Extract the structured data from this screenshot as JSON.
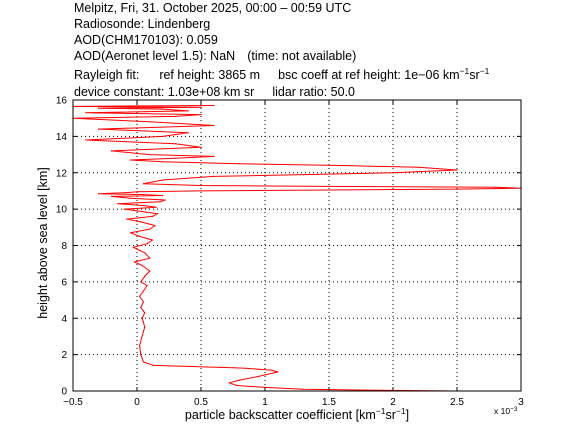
{
  "header": {
    "line1": "Melpitz, Fri, 31. October 2025, 00:00 – 00:59 UTC",
    "line2": "Radiosonde: Lindenberg",
    "line3": "AOD(CHM170103): 0.059",
    "line4_a": "AOD(Aeronet level 1.5): NaN",
    "line4_b": "(time: not available)",
    "line5_a": "Rayleigh fit:",
    "line5_b": "ref height: 3865 m",
    "line5_c": "bsc coeff at ref height: 1e−06 km",
    "line5_sup1": "−1",
    "line5_d": "sr",
    "line5_sup2": "−1",
    "line6_a": "device constant: 1.03e+08 km sr",
    "line6_b": "lidar ratio: 50.0"
  },
  "colors": {
    "profile": "#ff0000",
    "axes": "#000000",
    "grid": "#000000"
  },
  "chart_data": {
    "type": "line",
    "xlabel": "particle backscatter coefficient [km",
    "xlabel_sup1": "−1",
    "xlabel_mid": "sr",
    "xlabel_sup2": "−1",
    "xlabel_end": "]",
    "ylabel": "height above sea level [km]",
    "x_exponent_base": "x 10",
    "x_exponent_power": "−3",
    "xlim": [
      -0.5,
      3
    ],
    "ylim": [
      0,
      16
    ],
    "xticks": [
      -0.5,
      0,
      0.5,
      1,
      1.5,
      2,
      2.5,
      3
    ],
    "xtick_labels": [
      "−0.5",
      "0",
      "0.5",
      "1",
      "1.5",
      "2",
      "2.5",
      "3"
    ],
    "yticks": [
      0,
      2,
      4,
      6,
      8,
      10,
      12,
      14,
      16
    ],
    "ytick_labels": [
      "0",
      "2",
      "4",
      "6",
      "8",
      "10",
      "12",
      "14",
      "16"
    ],
    "grid": "dotted",
    "series": [
      {
        "x": [
          2.5,
          2.2,
          1.8,
          1.3,
          1.0,
          0.78,
          0.72,
          0.8,
          0.95,
          1.1,
          1.05,
          0.95,
          0.85,
          0.75,
          0.65,
          0.55,
          0.4,
          0.25,
          0.12,
          0.05,
          0.03,
          0.02,
          0.04,
          0.06,
          0.05,
          0.04,
          0.06,
          0.03,
          0.05,
          0.02,
          0.05,
          0.08,
          0.03,
          0.06,
          0.1,
          0.04,
          -0.02,
          0.1,
          0.06,
          -0.03,
          0.08,
          0.12,
          0.02,
          -0.05,
          0.1,
          0.14,
          0.03,
          -0.08,
          0.12,
          0.16,
          0.0,
          -0.1,
          0.15,
          0.05,
          -0.15,
          0.18,
          0.22,
          -0.05,
          -0.2,
          0.2,
          0.05,
          -0.3,
          -0.1,
          0.0,
          0.5,
          1.5,
          2.5,
          3.0,
          2.8,
          1.5,
          0.5,
          0.05,
          0.2,
          0.6,
          1.3,
          2.0,
          2.5,
          2.2,
          1.6,
          0.8,
          0.2,
          -0.05,
          0.3,
          0.6,
          0.1,
          -0.2,
          0.5,
          0.3,
          -0.4,
          0.2,
          0.4,
          -0.3,
          0.6,
          0.1,
          -0.5,
          0.3,
          0.5,
          -0.4,
          0.4,
          0.2,
          -0.3,
          0.5,
          0.0,
          -0.5,
          0.6
        ],
        "y": [
          0.0,
          0.02,
          0.05,
          0.1,
          0.2,
          0.3,
          0.45,
          0.6,
          0.8,
          1.05,
          1.15,
          1.2,
          1.25,
          1.28,
          1.3,
          1.32,
          1.35,
          1.38,
          1.42,
          1.6,
          2.0,
          2.5,
          3.0,
          3.5,
          3.8,
          4.0,
          4.3,
          4.6,
          4.9,
          5.2,
          5.5,
          5.8,
          6.0,
          6.3,
          6.6,
          6.9,
          7.1,
          7.3,
          7.6,
          7.9,
          8.1,
          8.3,
          8.5,
          8.7,
          8.9,
          9.1,
          9.3,
          9.45,
          9.6,
          9.75,
          9.9,
          10.0,
          10.1,
          10.2,
          10.3,
          10.4,
          10.5,
          10.6,
          10.7,
          10.75,
          10.8,
          10.85,
          10.9,
          10.95,
          11.0,
          11.05,
          11.1,
          11.15,
          11.2,
          11.25,
          11.3,
          11.4,
          11.6,
          11.8,
          11.9,
          12.0,
          12.15,
          12.3,
          12.4,
          12.5,
          12.6,
          12.7,
          12.8,
          12.9,
          13.0,
          13.2,
          13.4,
          13.6,
          13.8,
          14.0,
          14.2,
          14.4,
          14.6,
          14.8,
          15.0,
          15.1,
          15.2,
          15.3,
          15.4,
          15.5,
          15.55,
          15.6,
          15.62,
          15.65,
          15.7
        ]
      }
    ]
  }
}
